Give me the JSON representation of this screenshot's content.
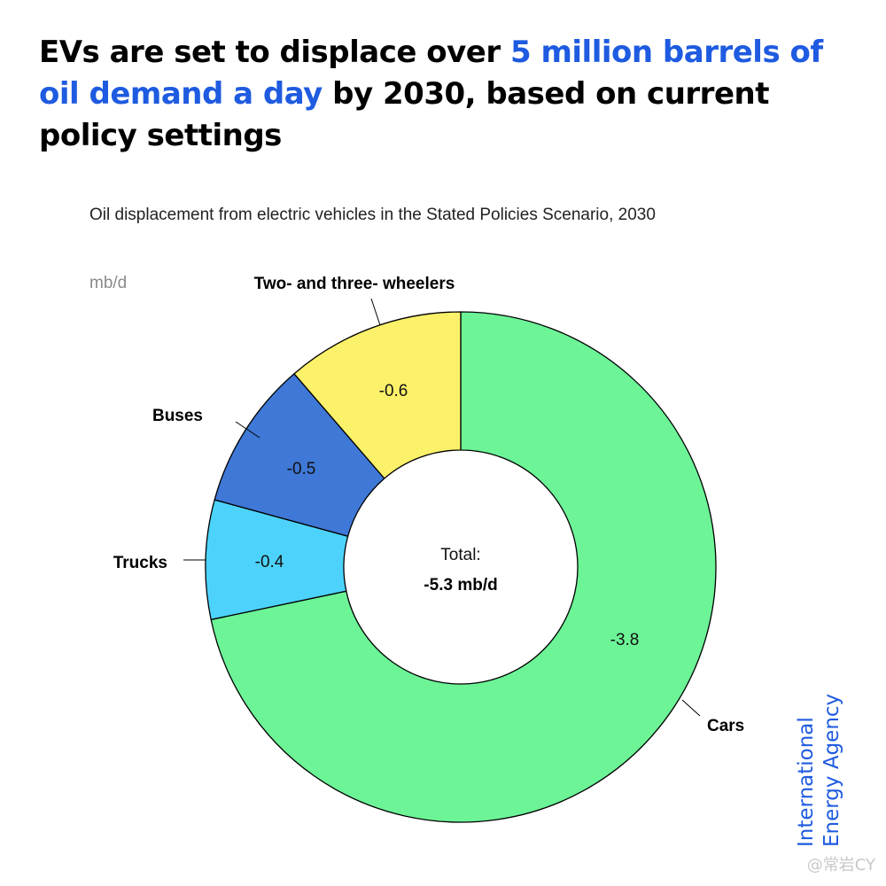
{
  "headline": {
    "part1": "EVs are set to displace over ",
    "highlight": "5 million barrels of oil demand a day",
    "part2": " by 2030, based on current policy settings"
  },
  "chart_data": {
    "type": "pie",
    "subtitle": "Oil displacement from electric vehicles in the Stated Policies Scenario, 2030",
    "unit": "mb/d",
    "series": [
      {
        "name": "Cars",
        "value": 3.8,
        "label": "-3.8",
        "color": "#6cf497"
      },
      {
        "name": "Trucks",
        "value": 0.4,
        "label": "-0.4",
        "color": "#4dd3fb"
      },
      {
        "name": "Buses",
        "value": 0.5,
        "label": "-0.5",
        "color": "#3f78d6"
      },
      {
        "name": "Two- and three- wheelers",
        "value": 0.6,
        "label": "-0.6",
        "color": "#fbf16a"
      }
    ],
    "center_label": "Total:",
    "center_value": "-5.3 mb/d"
  },
  "branding": {
    "line1": "International",
    "line2": "Energy Agency",
    "color": "#1e5be0"
  },
  "watermark": "@常岩CY"
}
